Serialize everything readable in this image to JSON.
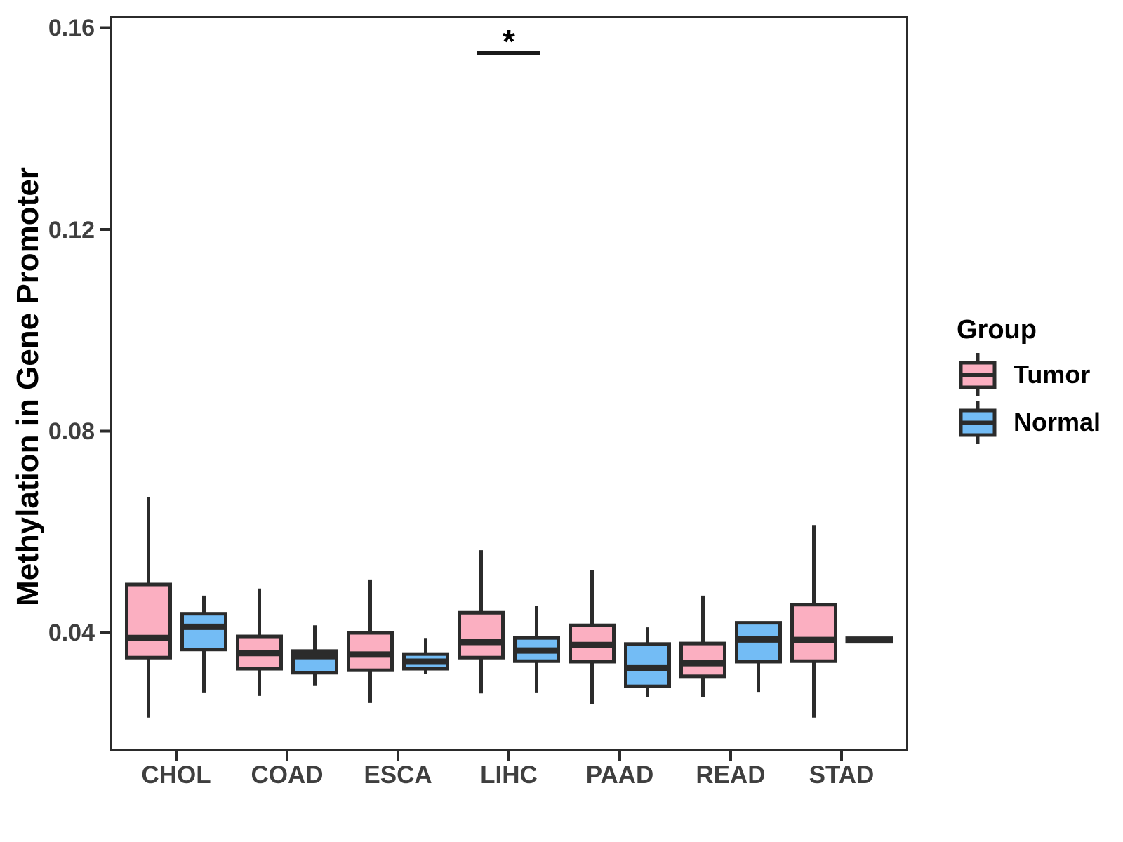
{
  "legend": {
    "title": "Group",
    "entries": [
      {
        "label": "Tumor",
        "color": "#FBAFC1"
      },
      {
        "label": "Normal",
        "color": "#73BCF5"
      }
    ]
  },
  "chart_data": {
    "type": "boxplot",
    "title": "",
    "xlabel": "",
    "ylabel": "Methylation in Gene Promoter",
    "legend_title": "Group",
    "legend_position": "right",
    "grid": false,
    "ylim": [
      0.0165,
      0.1623
    ],
    "y_tick_labels": [
      "0.16",
      "0.12",
      "0.08",
      "0.04"
    ],
    "y_tick_values": [
      0.16,
      0.12,
      0.08,
      0.04
    ],
    "categories": [
      "CHOL",
      "COAD",
      "ESCA",
      "LIHC",
      "PAAD",
      "READ",
      "STAD"
    ],
    "line_color": "#2b2b2b",
    "series": [
      {
        "name": "Tumor",
        "fill": "#FBAFC1",
        "boxes": [
          {
            "category": "CHOL",
            "low": 0.0232,
            "q1": 0.0351,
            "median": 0.039,
            "q3": 0.0496,
            "high": 0.0669
          },
          {
            "category": "COAD",
            "low": 0.0275,
            "q1": 0.0329,
            "median": 0.036,
            "q3": 0.0393,
            "high": 0.0488
          },
          {
            "category": "ESCA",
            "low": 0.0261,
            "q1": 0.0326,
            "median": 0.0357,
            "q3": 0.04,
            "high": 0.0506
          },
          {
            "category": "LIHC",
            "low": 0.028,
            "q1": 0.0351,
            "median": 0.0382,
            "q3": 0.044,
            "high": 0.0564
          },
          {
            "category": "PAAD",
            "low": 0.0259,
            "q1": 0.0343,
            "median": 0.0376,
            "q3": 0.0415,
            "high": 0.0525
          },
          {
            "category": "READ",
            "low": 0.0273,
            "q1": 0.0314,
            "median": 0.034,
            "q3": 0.0379,
            "high": 0.0474
          },
          {
            "category": "STAD",
            "low": 0.0232,
            "q1": 0.0344,
            "median": 0.0386,
            "q3": 0.0456,
            "high": 0.0614
          }
        ]
      },
      {
        "name": "Normal",
        "fill": "#73BCF5",
        "boxes": [
          {
            "category": "CHOL",
            "low": 0.0282,
            "q1": 0.0367,
            "median": 0.0412,
            "q3": 0.0438,
            "high": 0.0474
          },
          {
            "category": "COAD",
            "low": 0.0296,
            "q1": 0.0321,
            "median": 0.0354,
            "q3": 0.0364,
            "high": 0.0415
          },
          {
            "category": "ESCA",
            "low": 0.0318,
            "q1": 0.0329,
            "median": 0.0343,
            "q3": 0.0358,
            "high": 0.039
          },
          {
            "category": "LIHC",
            "low": 0.0282,
            "q1": 0.0344,
            "median": 0.0365,
            "q3": 0.039,
            "high": 0.0454
          },
          {
            "category": "PAAD",
            "low": 0.0273,
            "q1": 0.0294,
            "median": 0.033,
            "q3": 0.0378,
            "high": 0.0411
          },
          {
            "category": "READ",
            "low": 0.0283,
            "q1": 0.0343,
            "median": 0.0387,
            "q3": 0.042,
            "high": 0.042
          },
          {
            "category": "STAD",
            "low": 0.0386,
            "q1": 0.0386,
            "median": 0.0386,
            "q3": 0.0386,
            "high": 0.0386,
            "flat": true
          }
        ]
      }
    ],
    "annotations": [
      {
        "symbol": "*",
        "category": "LIHC",
        "bar_y": 0.155
      }
    ]
  }
}
